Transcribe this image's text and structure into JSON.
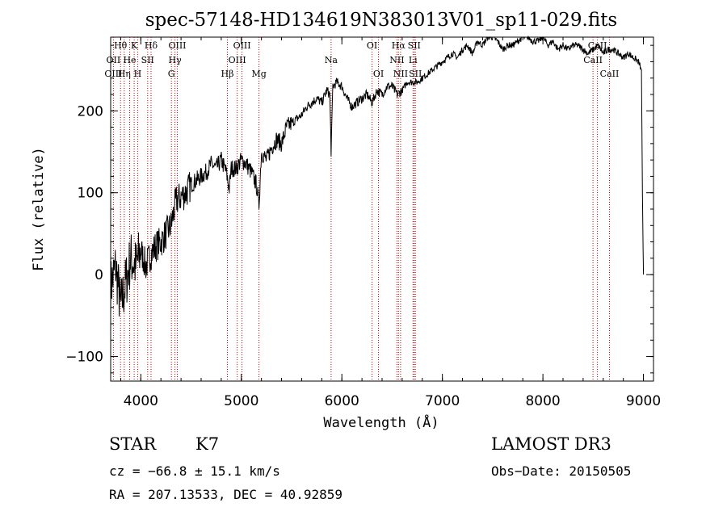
{
  "chart_data": {
    "type": "line",
    "title": "spec-57148-HD134619N383013V01_sp11-029.fits",
    "xlabel": "Wavelength (Å)",
    "ylabel": "Flux (relative)",
    "xlim": [
      3700,
      9100
    ],
    "ylim": [
      -130,
      290
    ],
    "x_ticks": [
      {
        "value": 4000,
        "label": "4000"
      },
      {
        "value": 5000,
        "label": "5000"
      },
      {
        "value": 6000,
        "label": "6000"
      },
      {
        "value": 7000,
        "label": "7000"
      },
      {
        "value": 8000,
        "label": "8000"
      },
      {
        "value": 9000,
        "label": "9000"
      }
    ],
    "y_ticks": [
      {
        "value": -100,
        "label": "−100"
      },
      {
        "value": 0,
        "label": "0"
      },
      {
        "value": 100,
        "label": "100"
      },
      {
        "value": 200,
        "label": "200"
      }
    ],
    "grid": false,
    "series": [
      {
        "color": "#000000",
        "x": [
          3700,
          3750,
          3800,
          3850,
          3900,
          3950,
          4000,
          4050,
          4100,
          4150,
          4200,
          4250,
          4300,
          4350,
          4400,
          4450,
          4500,
          4550,
          4600,
          4650,
          4700,
          4750,
          4800,
          4850,
          4880,
          4900,
          4950,
          5000,
          5050,
          5100,
          5150,
          5175,
          5200,
          5250,
          5300,
          5350,
          5400,
          5450,
          5500,
          5550,
          5600,
          5650,
          5700,
          5750,
          5800,
          5850,
          5880,
          5893,
          5910,
          5950,
          6000,
          6050,
          6100,
          6150,
          6200,
          6250,
          6300,
          6350,
          6400,
          6450,
          6500,
          6550,
          6600,
          6650,
          6700,
          6750,
          6800,
          6850,
          6900,
          6950,
          7000,
          7050,
          7100,
          7150,
          7200,
          7250,
          7300,
          7350,
          7400,
          7450,
          7500,
          7550,
          7600,
          7650,
          7700,
          7750,
          7800,
          7850,
          7900,
          7950,
          8000,
          8050,
          8100,
          8150,
          8200,
          8250,
          8300,
          8350,
          8400,
          8450,
          8500,
          8550,
          8600,
          8650,
          8700,
          8750,
          8800,
          8850,
          8900,
          8950,
          8980,
          8990,
          9000
        ],
        "y": [
          -15,
          10,
          -40,
          -10,
          20,
          10,
          30,
          10,
          25,
          35,
          40,
          50,
          60,
          90,
          95,
          100,
          110,
          115,
          120,
          125,
          135,
          130,
          140,
          125,
          105,
          130,
          130,
          140,
          135,
          125,
          110,
          85,
          150,
          140,
          155,
          165,
          160,
          180,
          185,
          190,
          195,
          205,
          210,
          215,
          210,
          225,
          220,
          150,
          230,
          235,
          230,
          215,
          205,
          210,
          215,
          220,
          210,
          225,
          220,
          230,
          230,
          220,
          225,
          235,
          235,
          235,
          240,
          245,
          250,
          255,
          260,
          265,
          270,
          265,
          275,
          280,
          270,
          285,
          280,
          290,
          290,
          285,
          275,
          280,
          280,
          285,
          290,
          290,
          285,
          285,
          290,
          280,
          285,
          275,
          280,
          275,
          280,
          280,
          275,
          270,
          275,
          280,
          270,
          275,
          275,
          270,
          265,
          270,
          265,
          260,
          250,
          100,
          0
        ]
      }
    ],
    "spectral_lines": [
      {
        "label": "Hθ",
        "x": 3798,
        "row": 0
      },
      {
        "label": "K",
        "x": 3934,
        "row": 0
      },
      {
        "label": "Hδ",
        "x": 4102,
        "row": 0
      },
      {
        "label": "OIII",
        "x": 4363,
        "row": 0
      },
      {
        "label": "OIII",
        "x": 5007,
        "row": 0
      },
      {
        "label": "OI",
        "x": 6300,
        "row": 0
      },
      {
        "label": "Hα",
        "x": 6563,
        "row": 0
      },
      {
        "label": "SII",
        "x": 6720,
        "row": 0
      },
      {
        "label": "CaII",
        "x": 8542,
        "row": 0
      },
      {
        "label": "OII",
        "x": 3727,
        "row": 1
      },
      {
        "label": "He",
        "x": 3889,
        "row": 1
      },
      {
        "label": "SII",
        "x": 4068,
        "row": 1
      },
      {
        "label": "Hγ",
        "x": 4340,
        "row": 1
      },
      {
        "label": "OIII",
        "x": 4959,
        "row": 1
      },
      {
        "label": "Na",
        "x": 5893,
        "row": 1
      },
      {
        "label": "NII",
        "x": 6548,
        "row": 1
      },
      {
        "label": "Li",
        "x": 6708,
        "row": 1
      },
      {
        "label": "CaII",
        "x": 8498,
        "row": 1
      },
      {
        "label": "OIII",
        "x": 3727,
        "row": 2
      },
      {
        "label": "Hη",
        "x": 3835,
        "row": 2
      },
      {
        "label": "H",
        "x": 3968,
        "row": 2
      },
      {
        "label": "G",
        "x": 4304,
        "row": 2
      },
      {
        "label": "Hβ",
        "x": 4861,
        "row": 2
      },
      {
        "label": "Mg",
        "x": 5175,
        "row": 2
      },
      {
        "label": "OI",
        "x": 6364,
        "row": 2
      },
      {
        "label": "NII",
        "x": 6584,
        "row": 2
      },
      {
        "label": "SII",
        "x": 6731,
        "row": 2
      },
      {
        "label": "CaII",
        "x": 8662,
        "row": 2
      }
    ],
    "line_markers": [
      3727,
      3798,
      3835,
      3889,
      3934,
      3968,
      4068,
      4102,
      4304,
      4340,
      4363,
      4861,
      4959,
      5007,
      5175,
      5893,
      6300,
      6364,
      6548,
      6563,
      6584,
      6708,
      6720,
      6731,
      8498,
      8542,
      8662
    ],
    "marker_color": "#cc0000"
  },
  "info": {
    "object_class": "STAR",
    "subclass": "K7",
    "survey": "LAMOST DR3",
    "cz": "cz = −66.8 ± 15.1 km/s",
    "obs_date": "Obs−Date: 20150505",
    "coords": "RA = 207.13533, DEC =  40.92859"
  }
}
